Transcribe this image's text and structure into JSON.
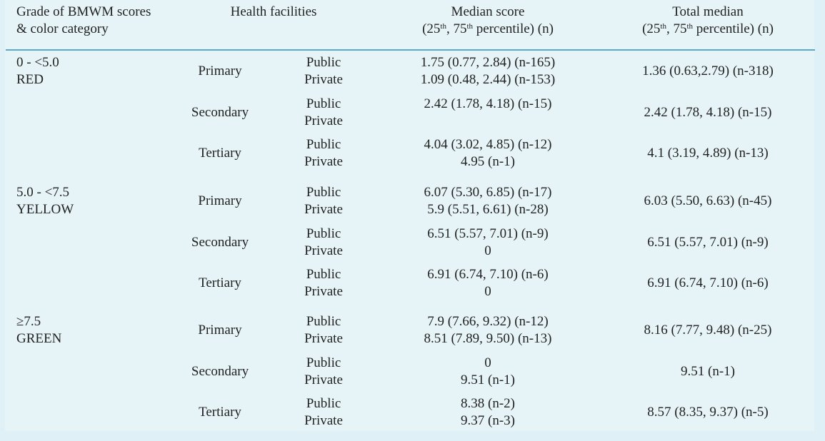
{
  "header": {
    "grade_line1": "Grade of BMWM scores",
    "grade_line2": "& color category",
    "facilities": "Health facilities",
    "median_title": "Median score",
    "median_sub_pre": "(25",
    "median_sub_sup1": "th",
    "median_sub_mid": ", 75",
    "median_sub_sup2": "th",
    "median_sub_post": " percentile) (n)",
    "total_title": "Total median",
    "total_sub_pre": "(25",
    "total_sub_sup1": "th",
    "total_sub_mid": ", 75",
    "total_sub_sup2": "th",
    "total_sub_post": " percentile) (n)"
  },
  "groups": [
    {
      "range": "0 - <5.0",
      "color": "RED",
      "rows": [
        {
          "facility": "Primary",
          "public": "Public",
          "private": "Private",
          "median_public": "1.75 (0.77, 2.84) (n-165)",
          "median_private": "1.09 (0.48, 2.44) (n-153)",
          "total": "1.36 (0.63,2.79) (n-318)"
        },
        {
          "facility": "Secondary",
          "public": "Public",
          "private": "Private",
          "median_public": "2.42 (1.78, 4.18) (n-15)",
          "median_private": "",
          "total": "2.42 (1.78, 4.18) (n-15)"
        },
        {
          "facility": "Tertiary",
          "public": "Public",
          "private": "Private",
          "median_public": "4.04 (3.02, 4.85) (n-12)",
          "median_private": "4.95 (n-1)",
          "total": "4.1 (3.19, 4.89) (n-13)"
        }
      ]
    },
    {
      "range": "5.0 - <7.5",
      "color": "YELLOW",
      "rows": [
        {
          "facility": "Primary",
          "public": "Public",
          "private": "Private",
          "median_public": "6.07 (5.30, 6.85) (n-17)",
          "median_private": "5.9 (5.51, 6.61) (n-28)",
          "total": "6.03 (5.50, 6.63) (n-45)"
        },
        {
          "facility": "Secondary",
          "public": "Public",
          "private": "Private",
          "median_public": "6.51 (5.57, 7.01) (n-9)",
          "median_private": "0",
          "total": "6.51 (5.57, 7.01) (n-9)"
        },
        {
          "facility": "Tertiary",
          "public": "Public",
          "private": "Private",
          "median_public": "6.91 (6.74, 7.10) (n-6)",
          "median_private": "0",
          "total": "6.91 (6.74, 7.10) (n-6)"
        }
      ]
    },
    {
      "range": "≥7.5",
      "color": "GREEN",
      "rows": [
        {
          "facility": "Primary",
          "public": "Public",
          "private": "Private",
          "median_public": "7.9 (7.66, 9.32) (n-12)",
          "median_private": "8.51 (7.89, 9.50) (n-13)",
          "total": "8.16 (7.77, 9.48) (n-25)"
        },
        {
          "facility": "Secondary",
          "public": "Public",
          "private": "Private",
          "median_public": "0",
          "median_private": "9.51 (n-1)",
          "total": "9.51 (n-1)"
        },
        {
          "facility": "Tertiary",
          "public": "Public",
          "private": "Private",
          "median_public": "8.38 (n-2)",
          "median_private": "9.37 (n-3)",
          "total": "8.57 (8.35, 9.37) (n-5)"
        }
      ]
    }
  ],
  "colors": {
    "background": "#e6f4f8",
    "rule": "#5aa9c6",
    "text": "#222222"
  }
}
